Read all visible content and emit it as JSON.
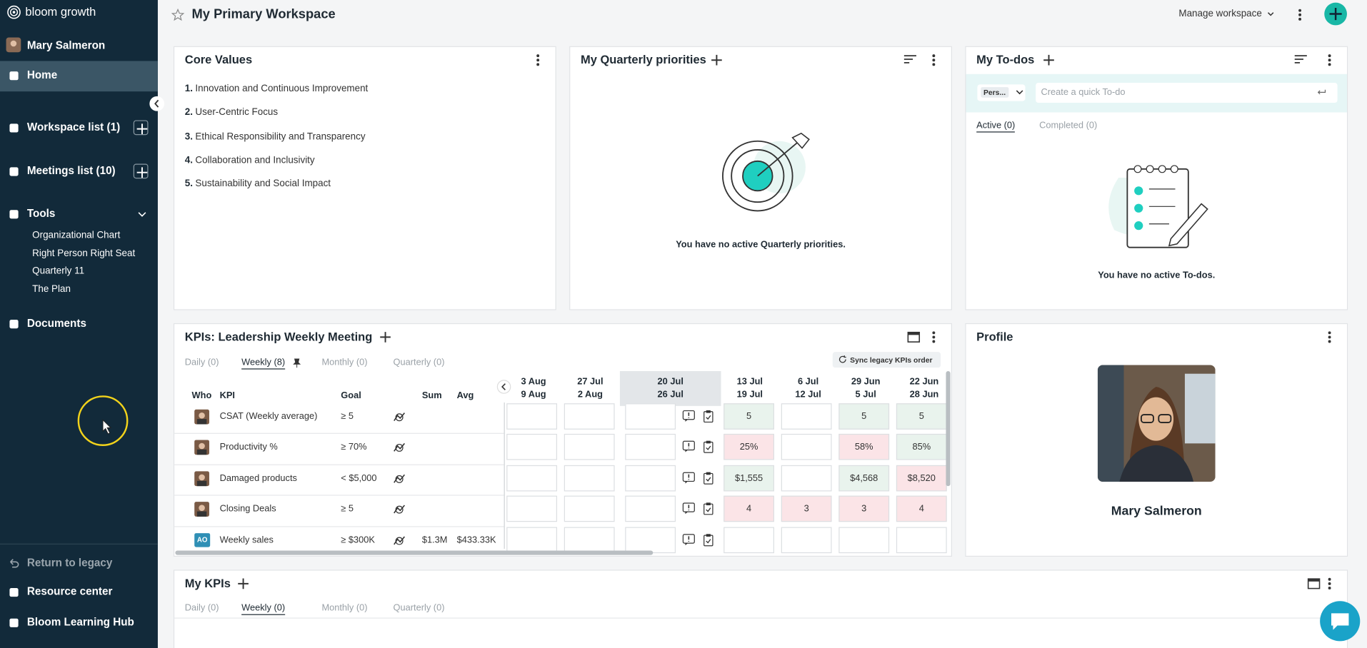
{
  "sidebar": {
    "brand": "bloom growth",
    "user": "Mary Salmeron",
    "home": "Home",
    "workspace_list": "Workspace list (1)",
    "meetings_list": "Meetings list (10)",
    "tools": "Tools",
    "tool_items": [
      "Organizational Chart",
      "Right Person Right Seat",
      "Quarterly 11",
      "The Plan"
    ],
    "documents": "Documents",
    "return_legacy": "Return to legacy",
    "resource_center": "Resource center",
    "learning_hub": "Bloom Learning Hub"
  },
  "header": {
    "title": "My Primary Workspace",
    "manage": "Manage workspace"
  },
  "core_values": {
    "title": "Core Values",
    "items": [
      {
        "number": "1.",
        "text": "Innovation and Continuous Improvement"
      },
      {
        "number": "2.",
        "text": "User-Centric Focus"
      },
      {
        "number": "3.",
        "text": "Ethical Responsibility and Transparency"
      },
      {
        "number": "4.",
        "text": "Collaboration and Inclusivity"
      },
      {
        "number": "5.",
        "text": "Sustainability and Social Impact"
      }
    ]
  },
  "quarterly_priorities": {
    "title": "My Quarterly priorities",
    "empty": "You have no active Quarterly priorities."
  },
  "todos": {
    "title": "My To-dos",
    "filter": "Pers...",
    "placeholder": "Create a quick To-do",
    "tabs": [
      "Active (0)",
      "Completed (0)"
    ],
    "empty": "You have no active To-dos."
  },
  "kpis": {
    "title": "KPIs: Leadership Weekly Meeting",
    "tabs": [
      "Daily (0)",
      "Weekly (8)",
      "Monthly (0)",
      "Quarterly (0)"
    ],
    "sync": "Sync legacy KPIs order",
    "columns": {
      "who": "Who",
      "kpi": "KPI",
      "goal": "Goal",
      "sum": "Sum",
      "avg": "Avg"
    },
    "weeks": [
      {
        "start": "3 Aug",
        "end": "9 Aug"
      },
      {
        "start": "27 Jul",
        "end": "2 Aug"
      },
      {
        "start": "20 Jul",
        "end": "26 Jul"
      },
      {
        "start": "13 Jul",
        "end": "19 Jul"
      },
      {
        "start": "6 Jul",
        "end": "12 Jul"
      },
      {
        "start": "29 Jun",
        "end": "5 Jul"
      },
      {
        "start": "22 Jun",
        "end": "28 Jun"
      }
    ],
    "rows": [
      {
        "name": "CSAT (Weekly average)",
        "goal": "≥ 5",
        "cells": [
          null,
          null,
          null,
          "5",
          null,
          "5",
          "5"
        ],
        "cell_colors": [
          null,
          null,
          null,
          "#e9f3ed",
          null,
          "#e9f3ed",
          "#e9f3ed"
        ]
      },
      {
        "name": "Productivity %",
        "goal": "≥ 70%",
        "cells": [
          null,
          null,
          null,
          "25%",
          null,
          "58%",
          "85%"
        ],
        "cell_colors": [
          null,
          null,
          null,
          "#fbe4e7",
          null,
          "#fbe4e7",
          "#e9f3ed"
        ]
      },
      {
        "name": "Damaged products",
        "goal": "< $5,000",
        "cells": [
          null,
          null,
          null,
          "$1,555",
          null,
          "$4,568",
          "$8,520"
        ],
        "cell_colors": [
          null,
          null,
          null,
          "#e9f3ed",
          null,
          "#e9f3ed",
          "#fbe4e7"
        ]
      },
      {
        "name": "Closing Deals",
        "goal": "≥ 5",
        "cells": [
          null,
          null,
          null,
          "4",
          "3",
          "3",
          "4"
        ],
        "cell_colors": [
          null,
          null,
          null,
          "#fbe4e7",
          "#fbe4e7",
          "#fbe4e7",
          "#fbe4e7"
        ]
      },
      {
        "owner_initials": "AO",
        "name": "Weekly sales",
        "goal": "≥ $300K",
        "sum": "$1.3M",
        "avg": "$433.33K",
        "cells": [
          null,
          null,
          null,
          null,
          null,
          null,
          null
        ],
        "cell_colors": [
          null,
          null,
          null,
          null,
          null,
          null,
          null
        ]
      }
    ]
  },
  "profile": {
    "title": "Profile",
    "name": "Mary Salmeron"
  },
  "my_kpis": {
    "title": "My KPIs",
    "tabs": [
      "Daily (0)",
      "Weekly (0)",
      "Monthly (0)",
      "Quarterly (0)"
    ]
  }
}
